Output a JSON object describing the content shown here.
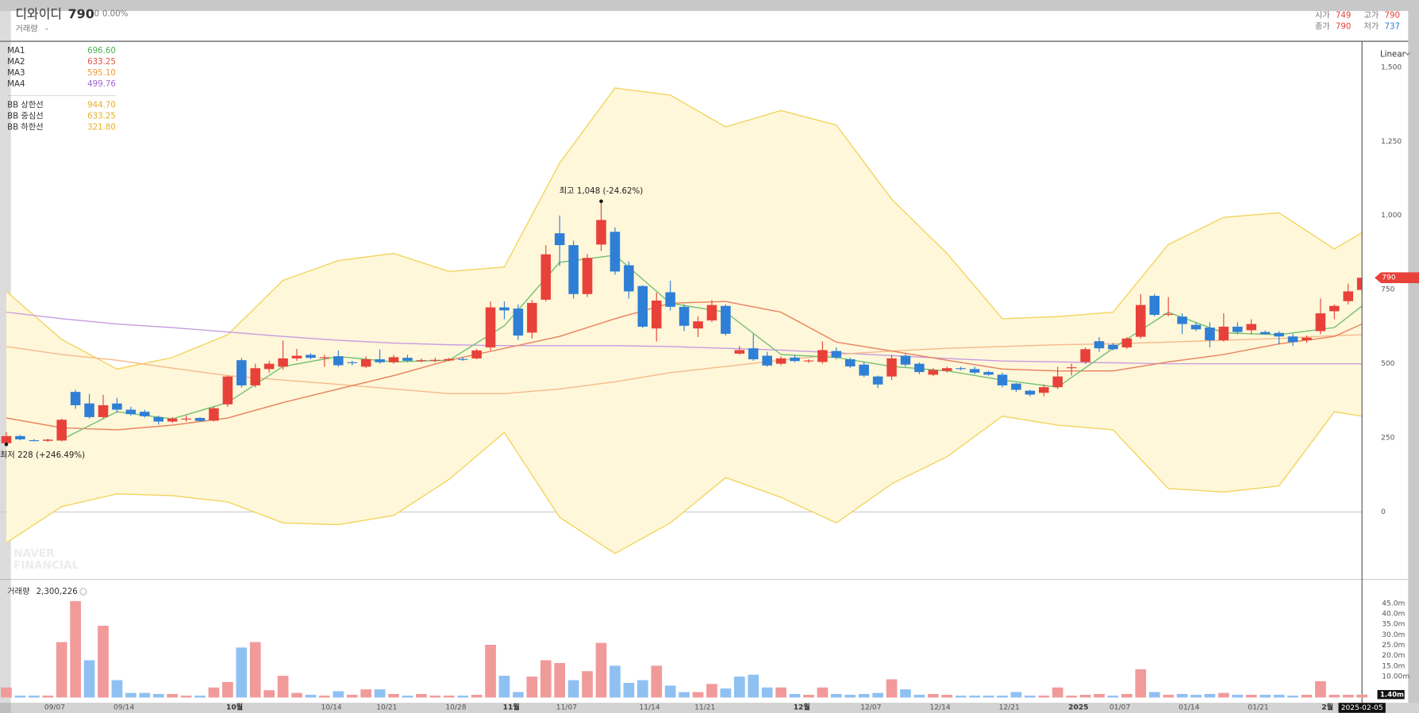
{
  "header": {
    "name": "디와이디",
    "price": "790",
    "change": "0",
    "change_pct": "0.00%",
    "volume_label": "거래량",
    "volume_value": "-",
    "ohlc": [
      {
        "label": "시가",
        "value": 749,
        "color": "#e8413a"
      },
      {
        "label": "고가",
        "value": 790,
        "color": "#e8413a"
      },
      {
        "label": "종가",
        "value": 790,
        "color": "#e8413a"
      },
      {
        "label": "저가",
        "value": 737,
        "color": "#2f7fd6"
      }
    ]
  },
  "watermark": [
    "NAVER",
    "FINANCIAL"
  ],
  "chart_data": [
    {
      "type": "candlestick",
      "scale": "Linear",
      "crosshair_date": "2025-02-05",
      "up_color": "#e8413a",
      "down_color": "#2f7fd6",
      "categories": [
        null,
        null,
        null,
        null,
        "09/07",
        null,
        null,
        null,
        null,
        "09/14",
        null,
        null,
        null,
        null,
        null,
        null,
        null,
        "10월",
        null,
        null,
        null,
        null,
        null,
        null,
        "10/14",
        null,
        null,
        null,
        "10/21",
        null,
        null,
        null,
        null,
        "10/28",
        null,
        null,
        null,
        "11월",
        null,
        null,
        null,
        "11/07",
        null,
        null,
        null,
        null,
        null,
        "11/14",
        null,
        null,
        null,
        "11/21",
        null,
        null,
        null,
        null,
        null,
        null,
        "12월",
        null,
        null,
        null,
        null,
        "12/07",
        null,
        null,
        null,
        null,
        "12/14",
        null,
        null,
        null,
        null,
        "12/21",
        null,
        null,
        null,
        null,
        "2025",
        null,
        null,
        "01/07",
        null,
        null,
        null,
        null,
        "01/14",
        null,
        null,
        null,
        null,
        "01/21",
        null,
        null,
        null,
        null,
        "2월",
        null,
        null
      ],
      "open": [
        232,
        256,
        242,
        240,
        241,
        405,
        366,
        320,
        366,
        345,
        338,
        320,
        305,
        315,
        317,
        308,
        363,
        512,
        427,
        482,
        490,
        518,
        530,
        522,
        525,
        505,
        490,
        515,
        505,
        520,
        510,
        512,
        511,
        516,
        518,
        555,
        690,
        686,
        605,
        716,
        940,
        900,
        735,
        902,
        945,
        832,
        762,
        619,
        741,
        692,
        619,
        646,
        695,
        534,
        552,
        527,
        500,
        521,
        509,
        506,
        543,
        515,
        497,
        457,
        457,
        527,
        500,
        463,
        476,
        485,
        482,
        472,
        463,
        433,
        409,
        402,
        421,
        485,
        506,
        576,
        564,
        555,
        591,
        729,
        668,
        659,
        631,
        622,
        579,
        625,
        613,
        607,
        604,
        592,
        579,
        610,
        677,
        711,
        749
      ],
      "high": [
        270,
        260,
        246,
        247,
        315,
        412,
        398,
        395,
        385,
        355,
        345,
        325,
        320,
        325,
        320,
        355,
        460,
        520,
        500,
        510,
        578,
        550,
        535,
        530,
        545,
        510,
        525,
        548,
        530,
        530,
        518,
        520,
        520,
        522,
        550,
        710,
        710,
        700,
        715,
        900,
        1000,
        915,
        870,
        1048,
        960,
        845,
        765,
        740,
        780,
        700,
        660,
        715,
        700,
        560,
        600,
        540,
        525,
        530,
        515,
        575,
        555,
        520,
        505,
        460,
        530,
        535,
        505,
        485,
        490,
        490,
        490,
        476,
        470,
        435,
        412,
        430,
        490,
        500,
        555,
        590,
        570,
        590,
        735,
        735,
        725,
        670,
        640,
        640,
        670,
        640,
        650,
        612,
        610,
        600,
        595,
        720,
        700,
        770,
        790
      ],
      "low": [
        228,
        242,
        238,
        236,
        238,
        348,
        315,
        315,
        335,
        325,
        318,
        295,
        300,
        305,
        305,
        305,
        355,
        420,
        420,
        470,
        480,
        510,
        515,
        490,
        490,
        495,
        485,
        500,
        500,
        505,
        505,
        505,
        508,
        510,
        515,
        545,
        650,
        580,
        585,
        710,
        830,
        720,
        725,
        880,
        800,
        720,
        620,
        575,
        680,
        610,
        590,
        640,
        595,
        530,
        510,
        490,
        495,
        505,
        503,
        500,
        515,
        485,
        455,
        418,
        445,
        490,
        465,
        458,
        470,
        478,
        465,
        460,
        420,
        405,
        390,
        390,
        415,
        460,
        500,
        540,
        545,
        550,
        585,
        660,
        660,
        600,
        610,
        555,
        575,
        600,
        600,
        598,
        565,
        560,
        570,
        600,
        650,
        700,
        737
      ],
      "close": [
        256,
        245,
        240,
        244,
        311,
        360,
        320,
        360,
        345,
        330,
        323,
        305,
        315,
        315,
        307,
        350,
        457,
        427,
        485,
        500,
        518,
        527,
        520,
        522,
        495,
        502,
        515,
        505,
        522,
        510,
        512,
        513,
        516,
        515,
        545,
        690,
        680,
        595,
        705,
        869,
        900,
        735,
        857,
        985,
        811,
        744,
        625,
        713,
        692,
        628,
        643,
        698,
        601,
        546,
        515,
        494,
        518,
        509,
        511,
        546,
        521,
        491,
        460,
        430,
        518,
        497,
        472,
        479,
        485,
        484,
        470,
        463,
        427,
        412,
        396,
        421,
        457,
        488,
        549,
        552,
        549,
        585,
        698,
        665,
        668,
        634,
        616,
        579,
        625,
        607,
        634,
        600,
        592,
        573,
        588,
        670,
        695,
        744,
        790
      ],
      "ylim": [
        -226,
        1589
      ],
      "yticks": [
        0,
        250,
        500,
        750,
        {
          "value": 1000,
          "label": "1,000"
        },
        {
          "value": 1250,
          "label": "1,250"
        },
        {
          "value": 1500,
          "label": "1,500"
        }
      ],
      "zero_line": true,
      "overlay_x": [
        0,
        4,
        8,
        12,
        16,
        20,
        24,
        28,
        32,
        36,
        40,
        44,
        48,
        52,
        56,
        60,
        64,
        68,
        72,
        76,
        80,
        84,
        88,
        92,
        96,
        98
      ],
      "moving_averages": [
        {
          "name": "MA1",
          "color": "#6fbf6f",
          "legend_color": "#4caf50",
          "legend_value": "696.60",
          "values": [
            null,
            244,
            338,
            314,
            369,
            491,
            524,
            506,
            512,
            628,
            842,
            866,
            704,
            674,
            531,
            521,
            491,
            476,
            445,
            421,
            552,
            674,
            604,
            598,
            622,
            695
          ]
        },
        {
          "name": "MA2",
          "color": "#e8826a",
          "legend_color": "#e05545",
          "legend_value": "633.25",
          "values": [
            317,
            284,
            277,
            293,
            317,
            369,
            415,
            460,
            512,
            552,
            592,
            652,
            704,
            710,
            674,
            573,
            543,
            512,
            482,
            476,
            476,
            506,
            531,
            567,
            592,
            634
          ]
        },
        {
          "name": "MA3",
          "color": "#f5b98a",
          "legend_color": "#ee9a3a",
          "legend_value": "595.10",
          "values": [
            558,
            531,
            512,
            485,
            460,
            445,
            430,
            415,
            399,
            399,
            415,
            439,
            470,
            491,
            512,
            531,
            543,
            552,
            558,
            564,
            567,
            573,
            579,
            585,
            595,
            598
          ]
        },
        {
          "name": "MA4",
          "color": "#c79be0",
          "legend_color": "#a066cc",
          "legend_value": "499.76",
          "values": [
            674,
            652,
            634,
            622,
            607,
            592,
            579,
            570,
            564,
            561,
            561,
            561,
            558,
            552,
            546,
            537,
            527,
            518,
            509,
            506,
            503,
            500,
            500,
            500,
            500,
            500
          ]
        }
      ],
      "bollinger": {
        "fill": "#fff7d9",
        "series": [
          {
            "name": "BB 상한선",
            "color": "#f2d45c",
            "legend_color": "#e8b020",
            "legend_value": "944.70",
            "values": [
              744,
              582,
              482,
              521,
              598,
              781,
              848,
              872,
              811,
              826,
              1177,
              1430,
              1406,
              1299,
              1354,
              1305,
              1055,
              872,
              652,
              659,
              674,
              902,
              994,
              1009,
              887,
              942
            ]
          },
          {
            "name": "BB 중심선",
            "color": "#f2d45c",
            "legend_color": "#e8b020",
            "legend_value": "633.25",
            "values": [
              317,
              284,
              277,
              293,
              317,
              369,
              415,
              460,
              512,
              552,
              592,
              652,
              704,
              710,
              674,
              573,
              543,
              512,
              482,
              476,
              476,
              506,
              531,
              567,
              592,
              634
            ]
          },
          {
            "name": "BB 하한선",
            "color": "#f2d45c",
            "legend_color": "#e8b020",
            "legend_value": "321.80",
            "values": [
              -104,
              18,
              61,
              55,
              34,
              -37,
              -43,
              -12,
              110,
              268,
              -18,
              -140,
              -37,
              116,
              49,
              -37,
              95,
              186,
              323,
              293,
              277,
              79,
              67,
              88,
              338,
              323
            ]
          }
        ]
      },
      "annotations": [
        {
          "text": "최고 1,048 (-24.62%)",
          "index": 43,
          "value": 1048
        },
        {
          "text": "최저 228 (+246.49%)",
          "index": 0,
          "value": 228
        }
      ]
    },
    {
      "type": "bar",
      "title": "거래량",
      "title_value": "2,300,226",
      "up_color": "#f19a9a",
      "down_color": "#8fc0f2",
      "values": [
        4.8,
        0.9,
        0.9,
        0.9,
        26.5,
        46.1,
        17.8,
        34.3,
        8.3,
        2.2,
        2.2,
        1.7,
        1.7,
        0.9,
        0.9,
        4.8,
        7.4,
        23.9,
        26.5,
        3.5,
        10.4,
        2.2,
        1.3,
        0.9,
        3.0,
        1.3,
        3.9,
        3.9,
        1.7,
        0.9,
        1.7,
        0.9,
        0.9,
        0.9,
        1.3,
        25.2,
        10.4,
        2.6,
        10.0,
        17.8,
        16.5,
        8.3,
        12.6,
        26.1,
        15.2,
        7.0,
        8.3,
        15.2,
        5.7,
        2.6,
        2.6,
        6.5,
        4.3,
        10.0,
        10.9,
        4.8,
        4.8,
        1.7,
        1.3,
        4.8,
        1.7,
        1.3,
        1.7,
        2.2,
        8.7,
        3.9,
        1.3,
        1.7,
        1.3,
        0.9,
        0.9,
        0.9,
        0.9,
        2.6,
        0.9,
        0.9,
        4.8,
        0.9,
        1.3,
        1.7,
        0.9,
        1.7,
        13.5,
        2.6,
        1.3,
        1.7,
        1.3,
        1.7,
        2.2,
        1.3,
        1.3,
        1.3,
        1.3,
        0.9,
        1.3,
        7.8,
        1.3,
        1.3,
        1.4
      ],
      "last_value_label": "1.40m",
      "ylim": [
        -1.7,
        54.5
      ],
      "yticks": [
        {
          "value": 10,
          "label": "10.00m"
        },
        {
          "value": 15,
          "label": "15.0m"
        },
        {
          "value": 20,
          "label": "20.0m"
        },
        {
          "value": 25,
          "label": "25.0m"
        },
        {
          "value": 30,
          "label": "30.0m"
        },
        {
          "value": 35,
          "label": "35.0m"
        },
        {
          "value": 40,
          "label": "40.0m"
        },
        {
          "value": 45,
          "label": "45.0m"
        }
      ]
    }
  ]
}
